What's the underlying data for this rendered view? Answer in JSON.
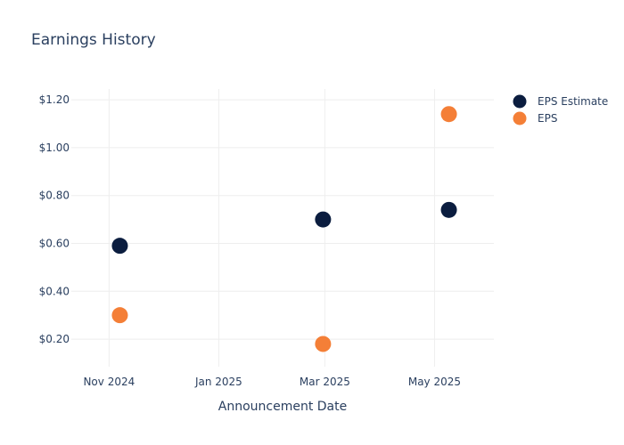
{
  "chart_data": {
    "type": "scatter",
    "title": "Earnings History",
    "xlabel": "Announcement Date",
    "ylabel": "",
    "x_ticks": [
      {
        "label": "Nov 2024",
        "date": "2024-11-01"
      },
      {
        "label": "Jan 2025",
        "date": "2025-01-01"
      },
      {
        "label": "Mar 2025",
        "date": "2025-03-01"
      },
      {
        "label": "May 2025",
        "date": "2025-05-01"
      }
    ],
    "y_ticks": [
      {
        "label": "$0.20",
        "value": 0.2
      },
      {
        "label": "$0.40",
        "value": 0.4
      },
      {
        "label": "$0.60",
        "value": 0.6
      },
      {
        "label": "$0.80",
        "value": 0.8
      },
      {
        "label": "$1.00",
        "value": 1.0
      },
      {
        "label": "$1.20",
        "value": 1.2
      }
    ],
    "xlim": [
      "2024-10-11",
      "2025-06-03"
    ],
    "ylim": [
      0.085,
      1.245
    ],
    "grid": true,
    "legend_position": "top-right",
    "series": [
      {
        "name": "EPS Estimate",
        "color": "#0b1d3f",
        "points": [
          {
            "x": "2024-11-07",
            "y": 0.59
          },
          {
            "x": "2025-02-28",
            "y": 0.7
          },
          {
            "x": "2025-05-09",
            "y": 0.74
          }
        ]
      },
      {
        "name": "EPS",
        "color": "#f47f37",
        "points": [
          {
            "x": "2024-11-07",
            "y": 0.3
          },
          {
            "x": "2025-02-28",
            "y": 0.18
          },
          {
            "x": "2025-05-09",
            "y": 1.14
          }
        ]
      }
    ]
  }
}
